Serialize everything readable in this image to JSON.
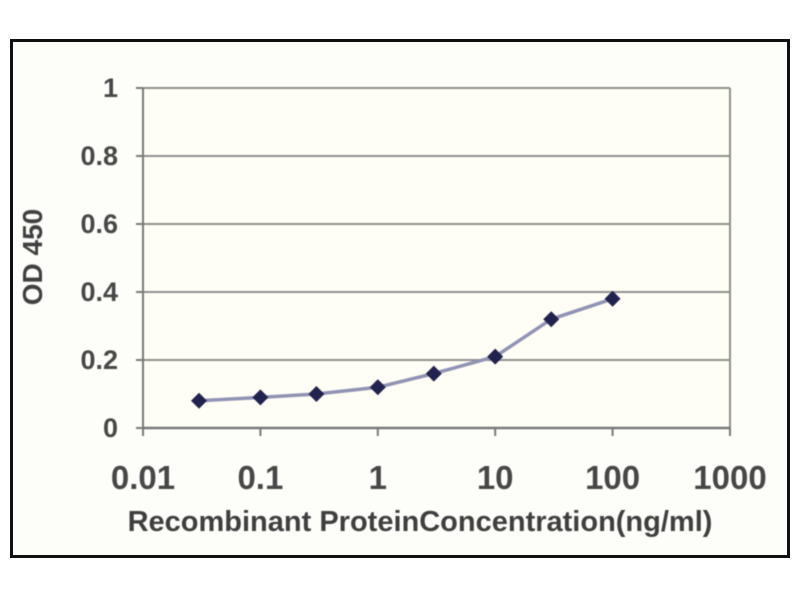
{
  "chart_data": {
    "type": "line",
    "title": "",
    "xlabel": "Recombinant ProteinConcentration(ng/ml)",
    "ylabel": "OD 450",
    "x_scale": "log",
    "xlim": [
      0.01,
      1000
    ],
    "ylim": [
      0,
      1
    ],
    "x_tick_values": [
      0.01,
      0.1,
      1,
      10,
      100,
      1000
    ],
    "x_tick_labels": [
      "0.01",
      "0.1",
      "1",
      "10",
      "100",
      "1000"
    ],
    "y_tick_values": [
      0,
      0.2,
      0.4,
      0.6,
      0.8,
      1
    ],
    "y_tick_labels": [
      "0",
      "0.2",
      "0.4",
      "0.6",
      "0.8",
      "1"
    ],
    "grid": "horizontal",
    "legend": "none",
    "marker": "diamond",
    "x": [
      0.03,
      0.1,
      0.3,
      1,
      3,
      10,
      30,
      100
    ],
    "y": [
      0.08,
      0.09,
      0.1,
      0.12,
      0.16,
      0.21,
      0.32,
      0.38
    ],
    "colors": {
      "line": "#9193b4",
      "marker": "#22224f",
      "grid": "#8f8f8f",
      "axis": "#787878",
      "tick_text": "#474747",
      "title_text": "#3f3f3f",
      "frame_border": "#101010",
      "frame_background": "#fdfdfa",
      "plot_background": "#fffef6"
    }
  }
}
